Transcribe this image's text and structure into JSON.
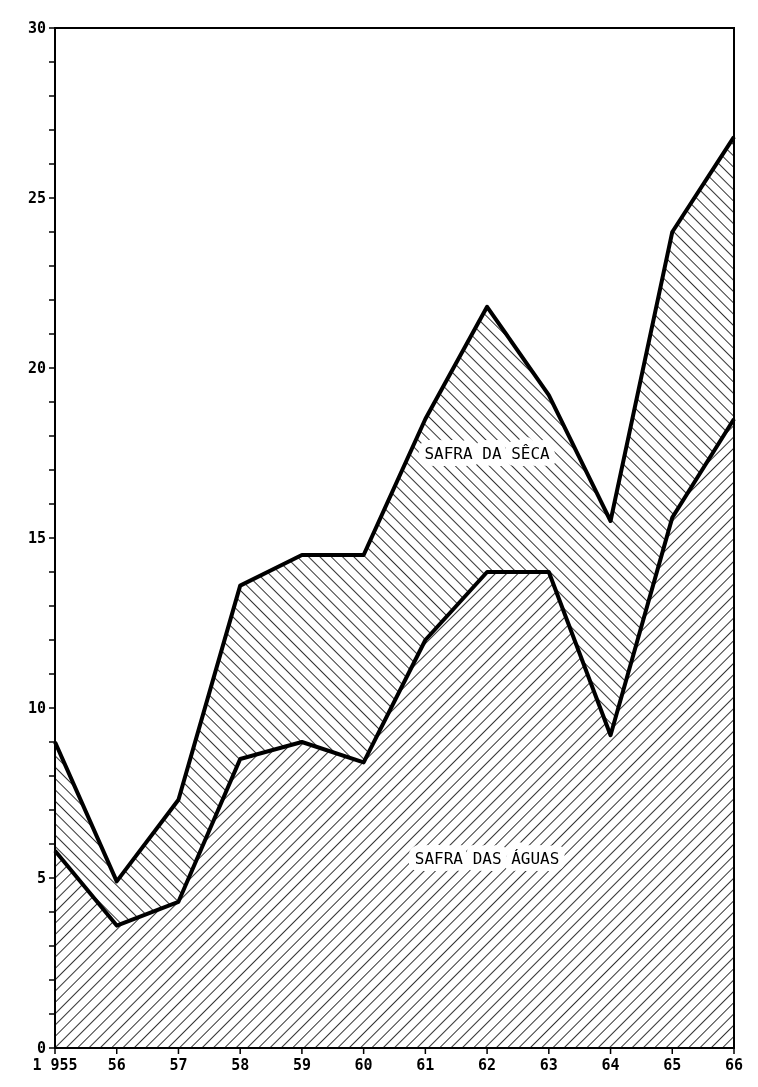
{
  "chart_data": {
    "type": "area",
    "stacked": true,
    "x": [
      1955,
      1956,
      1957,
      1958,
      1959,
      1960,
      1961,
      1962,
      1963,
      1964,
      1965,
      1966
    ],
    "xlim": [
      1955,
      1966
    ],
    "xticks": [
      {
        "value": 1955,
        "label": "1 955"
      },
      {
        "value": 1956,
        "label": "56"
      },
      {
        "value": 1957,
        "label": "57"
      },
      {
        "value": 1958,
        "label": "58"
      },
      {
        "value": 1959,
        "label": "59"
      },
      {
        "value": 1960,
        "label": "60"
      },
      {
        "value": 1961,
        "label": "61"
      },
      {
        "value": 1962,
        "label": "62"
      },
      {
        "value": 1963,
        "label": "63"
      },
      {
        "value": 1964,
        "label": "64"
      },
      {
        "value": 1965,
        "label": "65"
      },
      {
        "value": 1966,
        "label": "66"
      }
    ],
    "ylim": [
      0,
      30
    ],
    "yticks": [
      0,
      {
        "value": 1,
        "label": null
      },
      {
        "value": 2,
        "label": null
      },
      {
        "value": 3,
        "label": null
      },
      {
        "value": 4,
        "label": null
      },
      5,
      {
        "value": 6,
        "label": null
      },
      {
        "value": 7,
        "label": null
      },
      {
        "value": 8,
        "label": null
      },
      {
        "value": 9,
        "label": null
      },
      10,
      {
        "value": 11,
        "label": null
      },
      {
        "value": 12,
        "label": null
      },
      {
        "value": 13,
        "label": null
      },
      {
        "value": 14,
        "label": null
      },
      15,
      {
        "value": 16,
        "label": null
      },
      {
        "value": 17,
        "label": null
      },
      {
        "value": 18,
        "label": null
      },
      {
        "value": 19,
        "label": null
      },
      20,
      {
        "value": 21,
        "label": null
      },
      {
        "value": 22,
        "label": null
      },
      {
        "value": 23,
        "label": null
      },
      {
        "value": 24,
        "label": null
      },
      25,
      {
        "value": 26,
        "label": null
      },
      {
        "value": 27,
        "label": null
      },
      {
        "value": 28,
        "label": null
      },
      {
        "value": 29,
        "label": null
      },
      30
    ],
    "series": [
      {
        "name": "SAFRA DAS ÁGUAS",
        "color": "#000000",
        "values": [
          5.8,
          3.6,
          4.3,
          8.5,
          9.0,
          8.4,
          12.0,
          14.0,
          14.0,
          9.2,
          15.6,
          18.5
        ]
      },
      {
        "name": "SAFRA DA SÊCA",
        "color": "#000000",
        "values": [
          3.2,
          1.3,
          3.0,
          5.1,
          5.5,
          6.1,
          6.5,
          7.8,
          5.2,
          6.3,
          8.4,
          8.3
        ]
      }
    ]
  }
}
